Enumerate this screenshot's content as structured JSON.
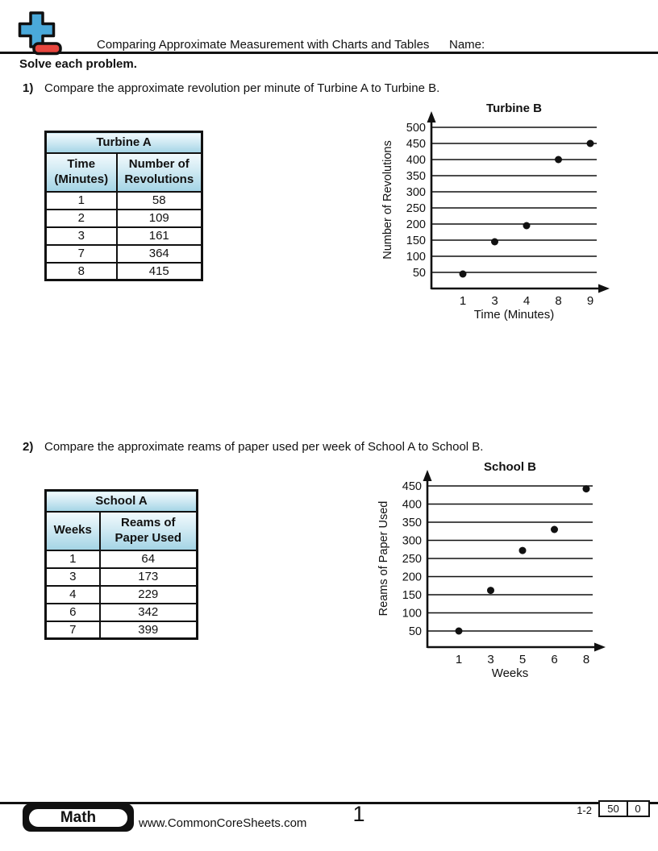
{
  "header": {
    "title": "Comparing Approximate Measurement with Charts and Tables",
    "name_label": "Name:",
    "instructions": "Solve each problem.",
    "logo": {
      "icon": "plus-minus-icon",
      "plus_color": "#4aa9da",
      "minus_color": "#e8463e"
    }
  },
  "problems": [
    {
      "number": "1)",
      "text": "Compare the approximate revolution per minute of Turbine A to Turbine B.",
      "table": {
        "title": "Turbine A",
        "columns": [
          "Time\n(Minutes)",
          "Number of\nRevolutions"
        ],
        "rows": [
          [
            "1",
            "58"
          ],
          [
            "2",
            "109"
          ],
          [
            "3",
            "161"
          ],
          [
            "7",
            "364"
          ],
          [
            "8",
            "415"
          ]
        ]
      }
    },
    {
      "number": "2)",
      "text": "Compare the approximate reams of paper used per week of School A to School B.",
      "table": {
        "title": "School A",
        "columns": [
          "Weeks",
          "Reams of\nPaper Used"
        ],
        "rows": [
          [
            "1",
            "64"
          ],
          [
            "3",
            "173"
          ],
          [
            "4",
            "229"
          ],
          [
            "6",
            "342"
          ],
          [
            "7",
            "399"
          ]
        ]
      }
    }
  ],
  "chart_data": [
    {
      "type": "scatter",
      "title": "Turbine B",
      "xlabel": "Time (Minutes)",
      "ylabel": "Number of Revolutions",
      "x_ticks": [
        "1",
        "3",
        "4",
        "8",
        "9"
      ],
      "y_ticks": [
        50,
        100,
        150,
        200,
        250,
        300,
        350,
        400,
        450,
        500
      ],
      "points": [
        [
          1,
          45
        ],
        [
          3,
          145
        ],
        [
          4,
          195
        ],
        [
          8,
          400
        ],
        [
          9,
          450
        ]
      ],
      "ylim": [
        0,
        525
      ],
      "grid": "horizontal",
      "legend": "none",
      "point_color": "#111111"
    },
    {
      "type": "scatter",
      "title": "School B",
      "xlabel": "Weeks",
      "ylabel": "Reams of Paper Used",
      "x_ticks": [
        "1",
        "3",
        "5",
        "6",
        "8"
      ],
      "y_ticks": [
        50,
        100,
        150,
        200,
        250,
        300,
        350,
        400,
        450
      ],
      "points": [
        [
          1,
          50
        ],
        [
          3,
          162
        ],
        [
          5,
          272
        ],
        [
          6,
          330
        ],
        [
          8,
          442
        ]
      ],
      "ylim": [
        0,
        475
      ],
      "grid": "horizontal",
      "legend": "none",
      "point_color": "#111111"
    }
  ],
  "footer": {
    "subject_badge": "Math",
    "website": "www.CommonCoreSheets.com",
    "page_number": "1",
    "problem_range": "1-2",
    "score_boxes": [
      "50",
      "0"
    ]
  }
}
